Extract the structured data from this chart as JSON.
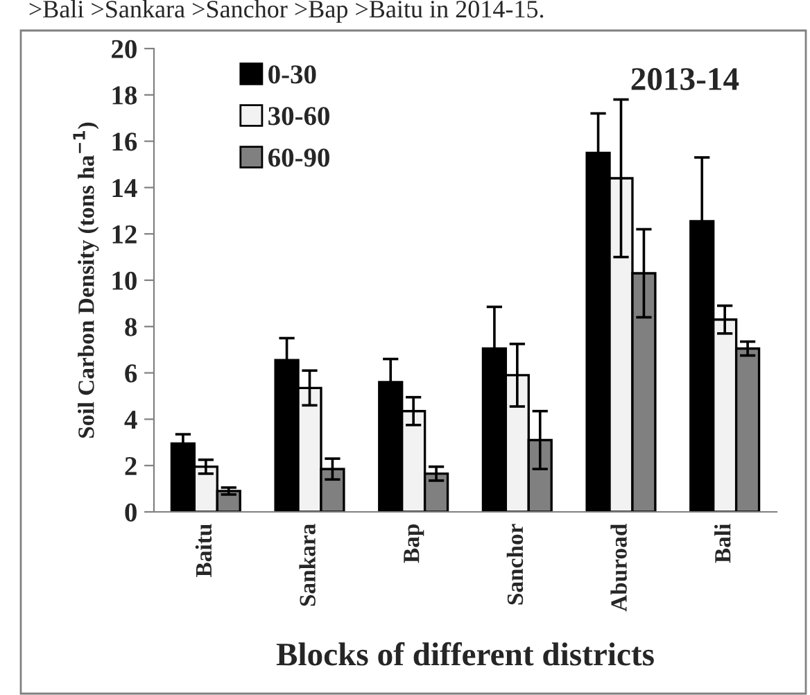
{
  "chart_data": {
    "type": "bar",
    "title": "2013-14",
    "xlabel": "Blocks of different districts",
    "ylabel": "Soil Carbon Density (tons ha$^{−1}$)",
    "annotations": [
      ">Bali >Sankara >Sanchor >Bap >Baitu in 2014-15."
    ],
    "categories": [
      "Baitu",
      "Sankara",
      "Bap",
      "Sanchor",
      "Aburoad",
      "Bali"
    ],
    "series": [
      {
        "name": "0-30",
        "color": "#000000",
        "values": [
          2.95,
          6.55,
          5.6,
          7.05,
          15.5,
          12.55
        ],
        "errors": [
          0.4,
          0.95,
          1.0,
          1.8,
          1.7,
          2.75
        ]
      },
      {
        "name": "30-60",
        "color": "#f2f2f2",
        "values": [
          1.95,
          5.35,
          4.35,
          5.9,
          14.4,
          8.3
        ],
        "errors": [
          0.3,
          0.75,
          0.6,
          1.35,
          3.4,
          0.6
        ]
      },
      {
        "name": "60-90",
        "color": "#808080",
        "values": [
          0.9,
          1.85,
          1.65,
          3.1,
          10.3,
          7.05
        ],
        "errors": [
          0.15,
          0.45,
          0.3,
          1.25,
          1.9,
          0.3
        ]
      }
    ],
    "ylim": [
      0,
      20
    ],
    "yticks": [
      0,
      2,
      4,
      6,
      8,
      10,
      12,
      14,
      16,
      18,
      20
    ],
    "grid": false,
    "legend": "top left"
  }
}
